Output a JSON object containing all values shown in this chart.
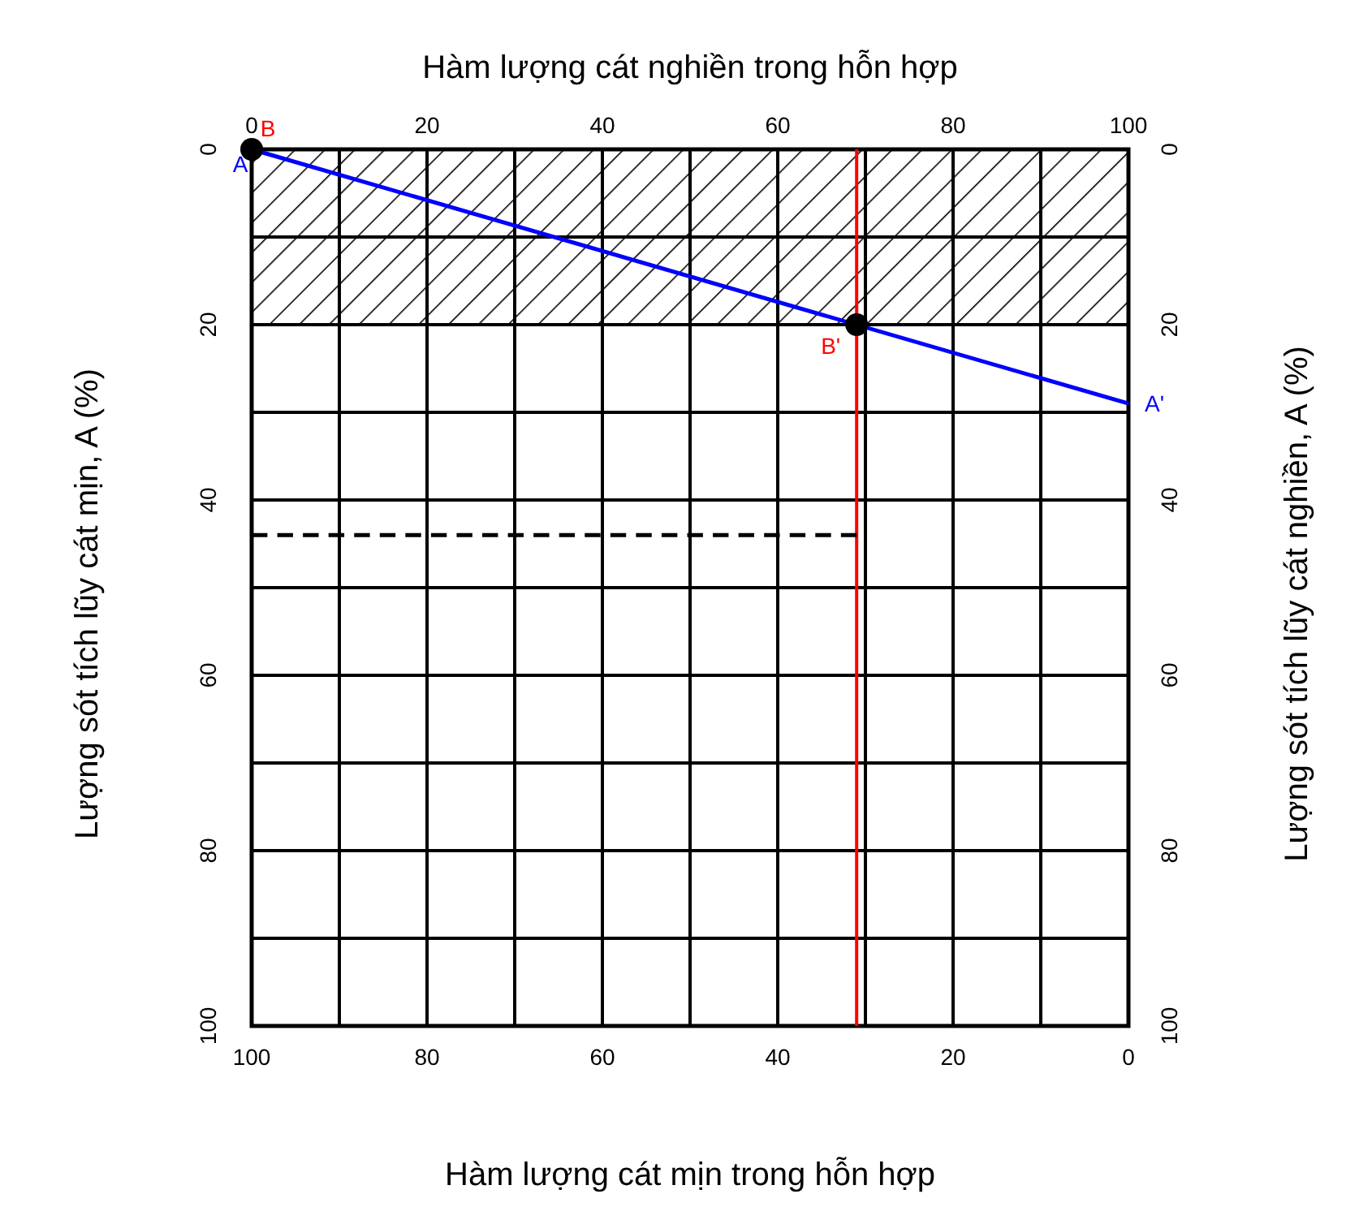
{
  "chart_data": {
    "type": "line",
    "x2label": "Hàm lượng cát nghiền trong hỗn hợp",
    "xlabel": "Hàm lượng cát mịn trong hỗn hợp",
    "ylabel": "Lượng sót tích lũy cát mịn, A (%)",
    "y2label": "Lượng sót tích lũy cát nghiền, A (%)",
    "xlim": [
      100,
      0
    ],
    "xticks": [
      0,
      {
        "value": 10,
        "label": null
      },
      20,
      {
        "value": 30,
        "label": null
      },
      40,
      {
        "value": 50,
        "label": null
      },
      60,
      {
        "value": 70,
        "label": null
      },
      80,
      {
        "value": 90,
        "label": null
      },
      100
    ],
    "x2lim": [
      0,
      100
    ],
    "x2ticks": [
      0,
      20,
      40,
      60,
      80,
      100
    ],
    "ylim": [
      100,
      0
    ],
    "yticks": [
      0,
      {
        "value": 10,
        "label": null
      },
      20,
      {
        "value": 30,
        "label": null
      },
      40,
      {
        "value": 50,
        "label": null
      },
      60,
      {
        "value": 70,
        "label": null
      },
      80,
      {
        "value": 90,
        "label": null
      },
      100
    ],
    "y2lim": [
      100,
      0
    ],
    "y2ticks": [
      0,
      20,
      40,
      60,
      80,
      100
    ],
    "grid": true,
    "bands": [
      {
        "axis": "y",
        "from": 0,
        "to": 20,
        "color": "#000000"
      }
    ],
    "ref_lines": [
      {
        "axis": "x",
        "value": 31,
        "color": "#ff0000"
      }
    ],
    "series": [
      {
        "color": "#0000ff",
        "x": [
          100,
          0
        ],
        "values": [
          0,
          29
        ]
      },
      {
        "type": "line",
        "color": "#000000",
        "line_style": "dashed",
        "x": [
          100,
          31
        ],
        "values": [
          44,
          44
        ]
      },
      {
        "type": "scatter",
        "color": "#000000",
        "marker": "circle",
        "x": [
          100,
          31
        ],
        "values": [
          0,
          20
        ]
      }
    ],
    "annotations": [
      {
        "text": "A",
        "x": 100,
        "y": 0
      },
      {
        "text": "B",
        "x": 100,
        "y": 0
      },
      {
        "text": "A'",
        "x": 0,
        "y": 29
      },
      {
        "text": "B'",
        "x": 31,
        "y": 20
      }
    ]
  }
}
